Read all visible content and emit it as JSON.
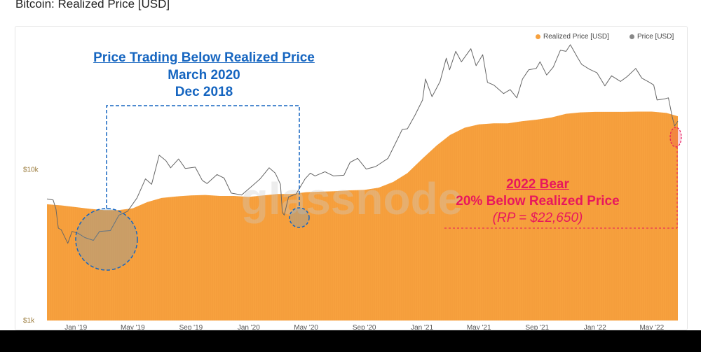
{
  "page": {
    "title": "Bitcoin: Realized Price [USD]"
  },
  "watermark": "glassnode",
  "colors": {
    "realized": "#f7a13e",
    "price": "#888888",
    "blue": "#1565c0",
    "pink": "#e8175d",
    "bottom_bar": "#000000"
  },
  "legend": [
    {
      "label": "Realized Price [USD]",
      "color": "#f7a13e"
    },
    {
      "label": "Price [USD]",
      "color": "#888888"
    }
  ],
  "annotations": {
    "left_title": "Price Trading Below Realized Price",
    "left_line2": "March 2020",
    "left_line3": "Dec 2018",
    "right_title": "2022 Bear",
    "right_line2": "20% Below Realized Price",
    "right_line3": "(RP = $22,650)"
  },
  "chart_data": {
    "type": "area",
    "title": "Bitcoin: Realized Price [USD]",
    "y_scale": "log",
    "ylim": [
      1000,
      80000
    ],
    "y_ticks": [
      {
        "value": 1000,
        "label": "$1k"
      },
      {
        "value": 10000,
        "label": "$10k"
      }
    ],
    "xlim": [
      "2018-11-01",
      "2022-06-25"
    ],
    "x_ticks": [
      {
        "date": "2019-01-01",
        "label": "Jan '19"
      },
      {
        "date": "2019-05-01",
        "label": "May '19"
      },
      {
        "date": "2019-09-01",
        "label": "Sep '19"
      },
      {
        "date": "2020-01-01",
        "label": "Jan '20"
      },
      {
        "date": "2020-05-01",
        "label": "May '20"
      },
      {
        "date": "2020-09-01",
        "label": "Sep '20"
      },
      {
        "date": "2021-01-01",
        "label": "Jan '21"
      },
      {
        "date": "2021-05-01",
        "label": "May '21"
      },
      {
        "date": "2021-09-01",
        "label": "Sep '21"
      },
      {
        "date": "2022-01-01",
        "label": "Jan '22"
      },
      {
        "date": "2022-05-01",
        "label": "May '22"
      }
    ],
    "grid": false,
    "legend_position": "top-right",
    "series": [
      {
        "name": "Realized Price [USD]",
        "x": [
          "2018-11-01",
          "2018-12-01",
          "2019-01-01",
          "2019-02-01",
          "2019-03-01",
          "2019-04-01",
          "2019-05-01",
          "2019-06-01",
          "2019-07-01",
          "2019-08-01",
          "2019-09-01",
          "2019-10-01",
          "2019-11-01",
          "2019-12-01",
          "2020-01-01",
          "2020-02-01",
          "2020-03-01",
          "2020-04-01",
          "2020-05-01",
          "2020-06-01",
          "2020-07-01",
          "2020-08-01",
          "2020-09-01",
          "2020-10-01",
          "2020-11-01",
          "2020-12-01",
          "2021-01-01",
          "2021-02-01",
          "2021-03-01",
          "2021-04-01",
          "2021-05-01",
          "2021-06-01",
          "2021-07-01",
          "2021-08-01",
          "2021-09-01",
          "2021-10-01",
          "2021-11-01",
          "2021-12-01",
          "2022-01-01",
          "2022-02-01",
          "2022-03-01",
          "2022-04-01",
          "2022-05-01",
          "2022-06-01",
          "2022-06-25"
        ],
        "values": [
          5900,
          5800,
          5650,
          5500,
          5400,
          5400,
          5550,
          6100,
          6500,
          6650,
          6750,
          6800,
          6700,
          6700,
          6600,
          6750,
          6900,
          6900,
          7100,
          7150,
          7200,
          7300,
          7350,
          7600,
          8300,
          9500,
          11800,
          14500,
          17000,
          19000,
          20000,
          20300,
          20300,
          21000,
          21500,
          22200,
          23500,
          24000,
          24200,
          24200,
          24200,
          24300,
          24300,
          23800,
          22650
        ]
      },
      {
        "name": "Price [USD]",
        "x": [
          "2018-11-01",
          "2018-11-14",
          "2018-11-20",
          "2018-11-25",
          "2018-12-01",
          "2018-12-15",
          "2018-12-24",
          "2019-01-05",
          "2019-01-20",
          "2019-02-07",
          "2019-02-20",
          "2019-03-15",
          "2019-04-02",
          "2019-04-20",
          "2019-05-10",
          "2019-05-28",
          "2019-06-10",
          "2019-06-26",
          "2019-07-10",
          "2019-07-20",
          "2019-08-06",
          "2019-08-20",
          "2019-09-10",
          "2019-09-25",
          "2019-10-05",
          "2019-10-26",
          "2019-11-10",
          "2019-11-25",
          "2019-12-17",
          "2020-01-10",
          "2020-01-25",
          "2020-02-13",
          "2020-02-26",
          "2020-03-08",
          "2020-03-12",
          "2020-03-16",
          "2020-03-25",
          "2020-04-10",
          "2020-04-29",
          "2020-05-10",
          "2020-05-20",
          "2020-06-10",
          "2020-06-28",
          "2020-07-20",
          "2020-08-02",
          "2020-08-18",
          "2020-09-05",
          "2020-09-25",
          "2020-10-21",
          "2020-11-05",
          "2020-11-20",
          "2020-12-01",
          "2020-12-17",
          "2021-01-02",
          "2021-01-08",
          "2021-01-22",
          "2021-02-08",
          "2021-02-21",
          "2021-02-28",
          "2021-03-13",
          "2021-03-25",
          "2021-04-14",
          "2021-04-25",
          "2021-05-09",
          "2021-05-19",
          "2021-06-01",
          "2021-06-22",
          "2021-07-06",
          "2021-07-20",
          "2021-08-01",
          "2021-08-14",
          "2021-08-30",
          "2021-09-07",
          "2021-09-21",
          "2021-10-05",
          "2021-10-20",
          "2021-11-01",
          "2021-11-10",
          "2021-11-26",
          "2021-12-04",
          "2021-12-20",
          "2022-01-05",
          "2022-01-22",
          "2022-02-05",
          "2022-02-24",
          "2022-03-10",
          "2022-03-28",
          "2022-04-10",
          "2022-04-26",
          "2022-05-05",
          "2022-05-12",
          "2022-05-28",
          "2022-06-05",
          "2022-06-13",
          "2022-06-18",
          "2022-06-25"
        ],
        "values": [
          6400,
          6300,
          5500,
          4100,
          4000,
          3250,
          3900,
          3800,
          3550,
          3400,
          3900,
          3950,
          5000,
          5300,
          6500,
          8700,
          8000,
          12500,
          11500,
          10300,
          11800,
          10200,
          10400,
          8500,
          8100,
          9300,
          8800,
          7000,
          6800,
          7900,
          8700,
          10300,
          9500,
          8000,
          5200,
          5000,
          6600,
          6900,
          8700,
          9500,
          9100,
          9700,
          9100,
          9200,
          11200,
          11900,
          10100,
          10500,
          11900,
          14800,
          18500,
          18700,
          23000,
          29000,
          40000,
          30500,
          38500,
          55000,
          46000,
          61000,
          52000,
          63500,
          49000,
          58000,
          38000,
          36500,
          32000,
          34000,
          30000,
          40000,
          46000,
          47000,
          52000,
          42500,
          48000,
          62000,
          61000,
          67500,
          55000,
          50000,
          46500,
          44000,
          36000,
          42000,
          38500,
          41500,
          47000,
          40500,
          38000,
          36500,
          29000,
          29500,
          30000,
          22500,
          19500,
          21000
        ]
      }
    ]
  }
}
